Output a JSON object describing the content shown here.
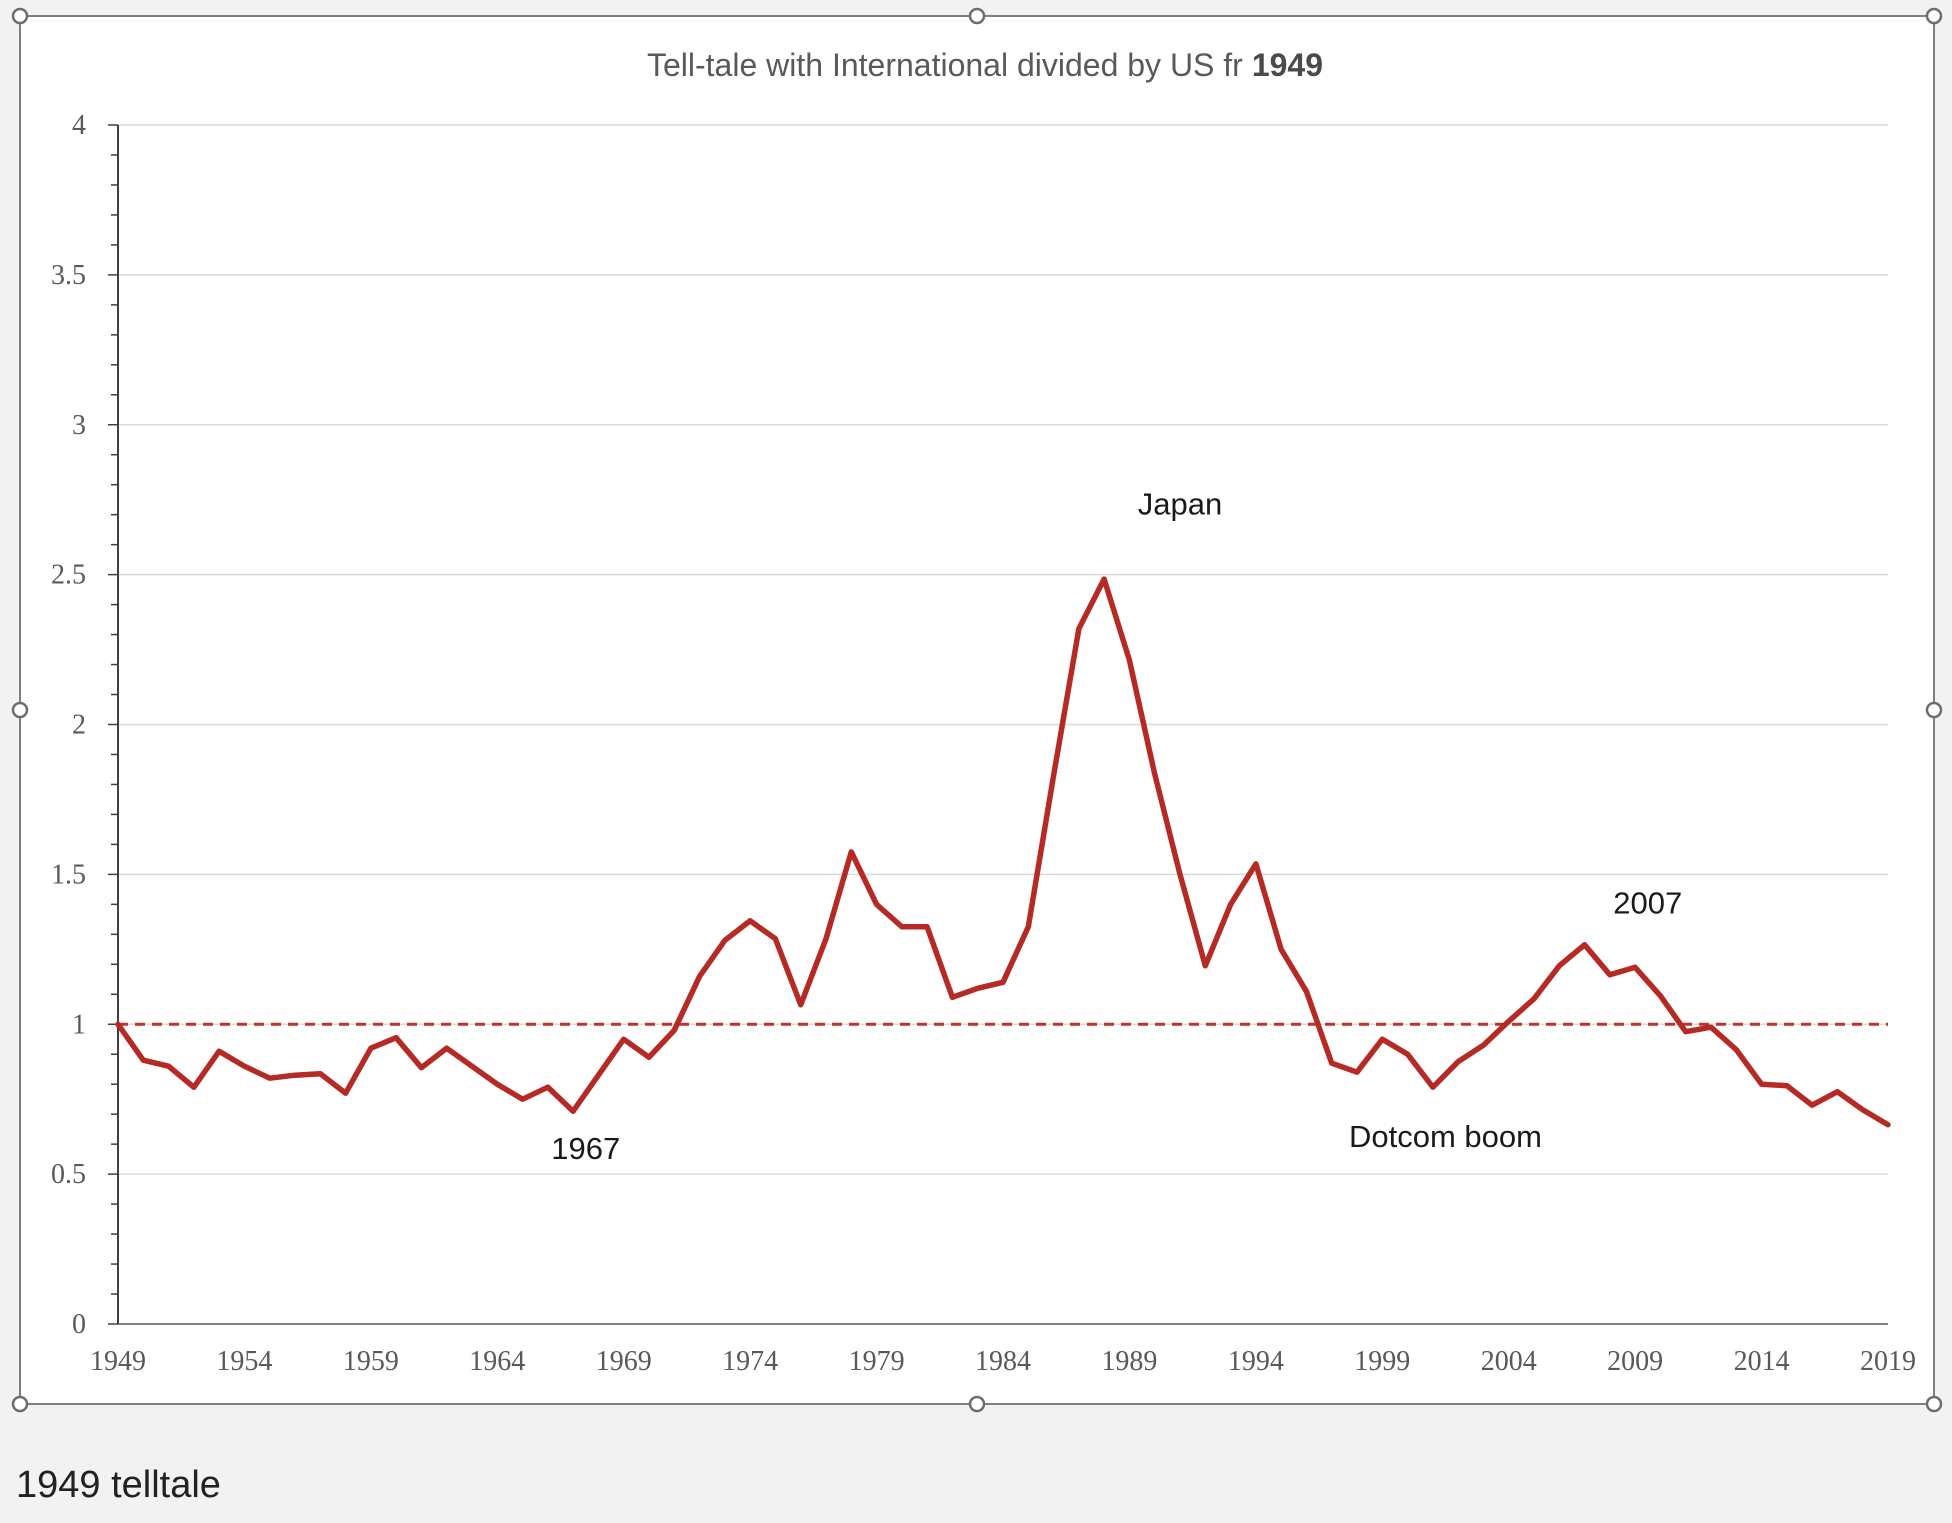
{
  "caption": "1949 telltale",
  "chart_data": {
    "type": "line",
    "title": "Tell-tale with International divided by US fr",
    "title_bold": "1949",
    "xlabel": "",
    "ylabel": "",
    "ylim": [
      0,
      4
    ],
    "yticks": [
      "0",
      "0.5",
      "1",
      "1.5",
      "2",
      "2.5",
      "3",
      "3.5",
      "4"
    ],
    "xticks": [
      "1949",
      "1954",
      "1959",
      "1964",
      "1969",
      "1974",
      "1979",
      "1984",
      "1989",
      "1994",
      "1999",
      "2004",
      "2009",
      "2014",
      "2019"
    ],
    "grid": true,
    "reference_line": {
      "y": 1.0,
      "style": "dashed",
      "color": "#c0312c"
    },
    "series": [
      {
        "name": "International / US",
        "color": "#b52a25",
        "x": [
          1949,
          1950,
          1951,
          1952,
          1953,
          1954,
          1955,
          1956,
          1957,
          1958,
          1959,
          1960,
          1961,
          1962,
          1963,
          1964,
          1965,
          1966,
          1967,
          1968,
          1969,
          1970,
          1971,
          1972,
          1973,
          1974,
          1975,
          1976,
          1977,
          1978,
          1979,
          1980,
          1981,
          1982,
          1983,
          1984,
          1985,
          1986,
          1987,
          1988,
          1989,
          1990,
          1991,
          1992,
          1993,
          1994,
          1995,
          1996,
          1997,
          1998,
          1999,
          2000,
          2001,
          2002,
          2003,
          2004,
          2005,
          2006,
          2007,
          2008,
          2009,
          2010,
          2011,
          2012,
          2013,
          2014,
          2015,
          2016,
          2017,
          2018,
          2019
        ],
        "values": [
          1.0,
          0.88,
          0.86,
          0.79,
          0.91,
          0.86,
          0.82,
          0.83,
          0.835,
          0.77,
          0.92,
          0.955,
          0.855,
          0.92,
          0.86,
          0.8,
          0.75,
          0.79,
          0.71,
          0.83,
          0.95,
          0.89,
          0.98,
          1.16,
          1.28,
          1.345,
          1.285,
          1.065,
          1.285,
          1.575,
          1.4,
          1.325,
          1.325,
          1.09,
          1.12,
          1.14,
          1.325,
          1.83,
          2.32,
          2.485,
          2.215,
          1.835,
          1.5,
          1.195,
          1.4,
          1.535,
          1.25,
          1.11,
          0.87,
          0.84,
          0.95,
          0.9,
          0.79,
          0.875,
          0.93,
          1.01,
          1.085,
          1.195,
          1.265,
          1.165,
          1.19,
          1.095,
          0.975,
          0.99,
          0.915,
          0.8,
          0.795,
          0.73,
          0.775,
          0.715,
          0.665
        ]
      }
    ],
    "annotations": [
      {
        "text": "Japan",
        "x": 1991,
        "y": 2.7
      },
      {
        "text": "1967",
        "x": 1967.5,
        "y": 0.55
      },
      {
        "text": "2007",
        "x": 2009.5,
        "y": 1.37
      },
      {
        "text": "Dotcom boom",
        "x": 2001.5,
        "y": 0.59
      }
    ]
  }
}
